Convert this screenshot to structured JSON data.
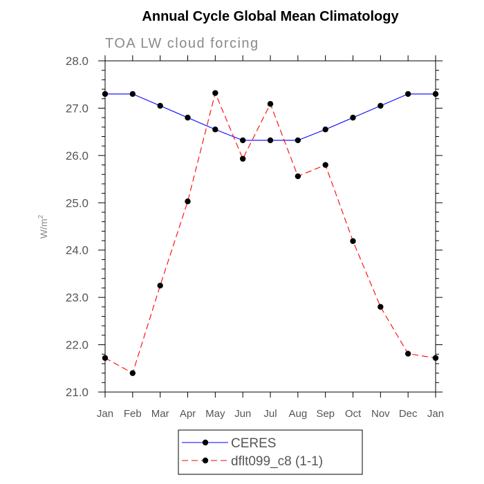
{
  "chart_data": {
    "type": "line",
    "title": "Annual Cycle Global Mean Climatology",
    "subtitle": "TOA LW cloud forcing",
    "xlabel": "",
    "ylabel": "W/m",
    "ylabel_superscript": "2",
    "categories": [
      "Jan",
      "Feb",
      "Mar",
      "Apr",
      "May",
      "Jun",
      "Jul",
      "Aug",
      "Sep",
      "Oct",
      "Nov",
      "Dec",
      "Jan"
    ],
    "ylim": [
      21.0,
      28.0
    ],
    "yticks": [
      21.0,
      22.0,
      23.0,
      24.0,
      25.0,
      26.0,
      27.0,
      28.0
    ],
    "ytick_labels": [
      "21.0",
      "22.0",
      "23.0",
      "24.0",
      "25.0",
      "26.0",
      "27.0",
      "28.0"
    ],
    "grid": false,
    "legend_position": "bottom-center",
    "series": [
      {
        "name": "CERES",
        "color": "#0000ff",
        "line_style": "solid",
        "marker": "filled-circle",
        "values": [
          27.3,
          27.3,
          27.05,
          26.8,
          26.55,
          26.32,
          26.32,
          26.32,
          26.55,
          26.8,
          27.05,
          27.3,
          27.3
        ]
      },
      {
        "name": "dflt099_c8 (1-1)",
        "color": "#ff0000",
        "line_style": "dashed",
        "marker": "filled-circle",
        "values": [
          21.72,
          21.4,
          23.25,
          25.03,
          27.32,
          25.93,
          27.09,
          25.56,
          25.8,
          24.19,
          22.8,
          21.81,
          21.72
        ]
      }
    ]
  }
}
